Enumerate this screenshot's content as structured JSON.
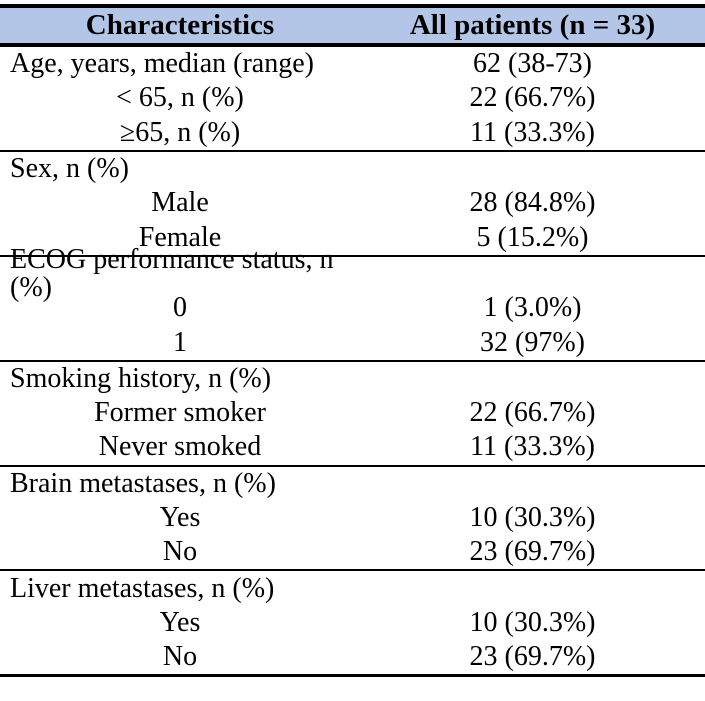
{
  "page": {
    "background": "#ffffff"
  },
  "table": {
    "header_bg": "#b4c6e7",
    "border_color": "#000000",
    "header": {
      "col1": "Characteristics",
      "col2": "All patients (n = 33)"
    },
    "rows": [
      {
        "label": "Age, years, median (range)",
        "value": "62 (38-73)"
      },
      {
        "label": "< 65, n (%)",
        "value": "22 (66.7%)"
      },
      {
        "label": "≥65, n (%)",
        "value": "11 (33.3%)"
      },
      {
        "label": "Sex, n (%)",
        "value": ""
      },
      {
        "label": "Male",
        "value": "28 (84.8%)"
      },
      {
        "label": "Female",
        "value": "5 (15.2%)"
      },
      {
        "label": "ECOG performance status, n (%)",
        "value": ""
      },
      {
        "label": "0",
        "value": "1 (3.0%)"
      },
      {
        "label": "1",
        "value": "32 (97%)"
      },
      {
        "label": "Smoking history, n (%)",
        "value": ""
      },
      {
        "label": "Former smoker",
        "value": "22 (66.7%)"
      },
      {
        "label": "Never smoked",
        "value": "11 (33.3%)"
      },
      {
        "label": "Brain metastases, n (%)",
        "value": ""
      },
      {
        "label": "Yes",
        "value": "10 (30.3%)"
      },
      {
        "label": "No",
        "value": "23 (69.7%)"
      },
      {
        "label": "Liver metastases, n (%)",
        "value": ""
      },
      {
        "label": "Yes",
        "value": "10 (30.3%)"
      },
      {
        "label": "No",
        "value": "23 (69.7%)"
      }
    ]
  }
}
